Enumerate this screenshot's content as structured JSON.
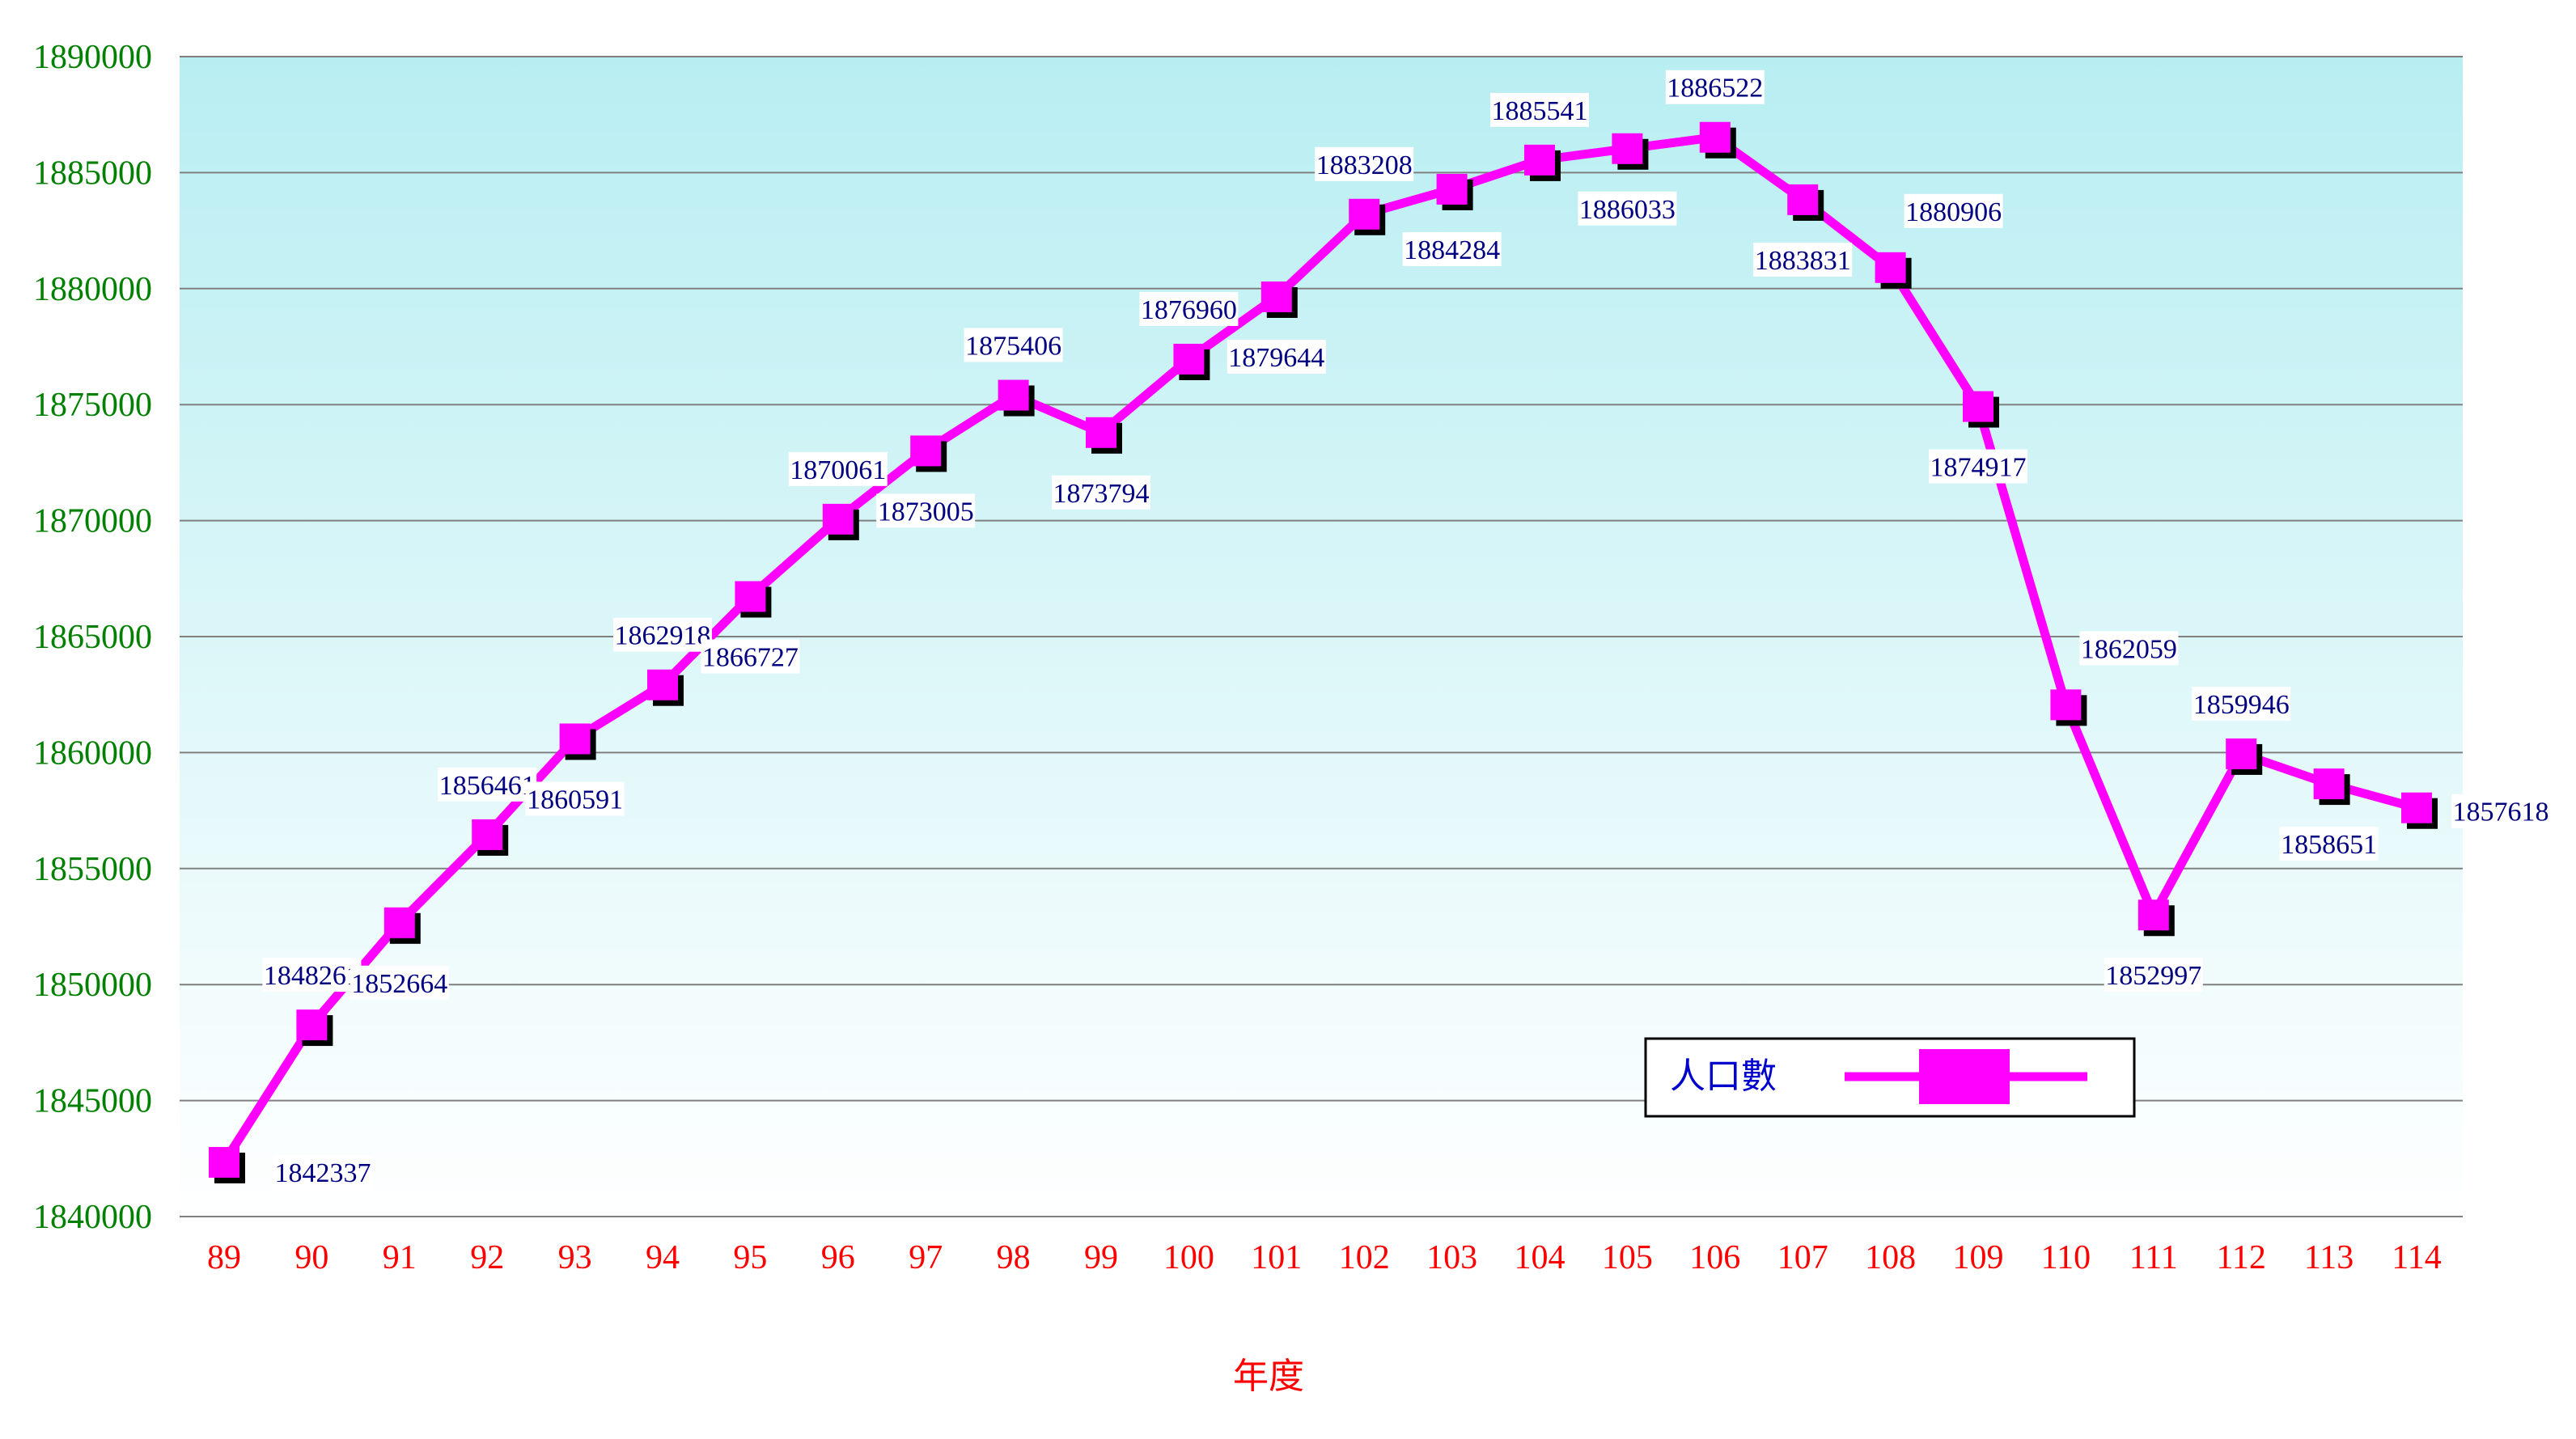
{
  "chart_data": {
    "type": "line",
    "xlabel": "年度",
    "ylabel": "",
    "ylim": [
      1840000,
      1890000
    ],
    "ytick_step": 5000,
    "grid": true,
    "legend_position": "bottom-right",
    "categories": [
      "89",
      "90",
      "91",
      "92",
      "93",
      "94",
      "95",
      "96",
      "97",
      "98",
      "99",
      "100",
      "101",
      "102",
      "103",
      "104",
      "105",
      "106",
      "107",
      "108",
      "109",
      "110",
      "111",
      "112",
      "113",
      "114"
    ],
    "series": [
      {
        "name": "人口數",
        "values": [
          1842337,
          1848261,
          1852664,
          1856461,
          1860591,
          1862918,
          1866727,
          1870061,
          1873005,
          1875406,
          1873794,
          1876960,
          1879644,
          1883208,
          1884284,
          1885541,
          1886033,
          1886522,
          1883831,
          1880906,
          1874917,
          1862059,
          1852997,
          1859946,
          1858651,
          1857618
        ]
      }
    ],
    "colors": {
      "line": "#ff00ff",
      "marker_shadow": "#000000",
      "ytick": "#008000",
      "xtick": "#ff0000",
      "xlabel": "#ff0000",
      "data_label": "#000080",
      "legend_text": "#0000cc",
      "plot_top": "#b8eef2",
      "plot_bottom": "#ffffff",
      "gridline": "#808080"
    }
  }
}
